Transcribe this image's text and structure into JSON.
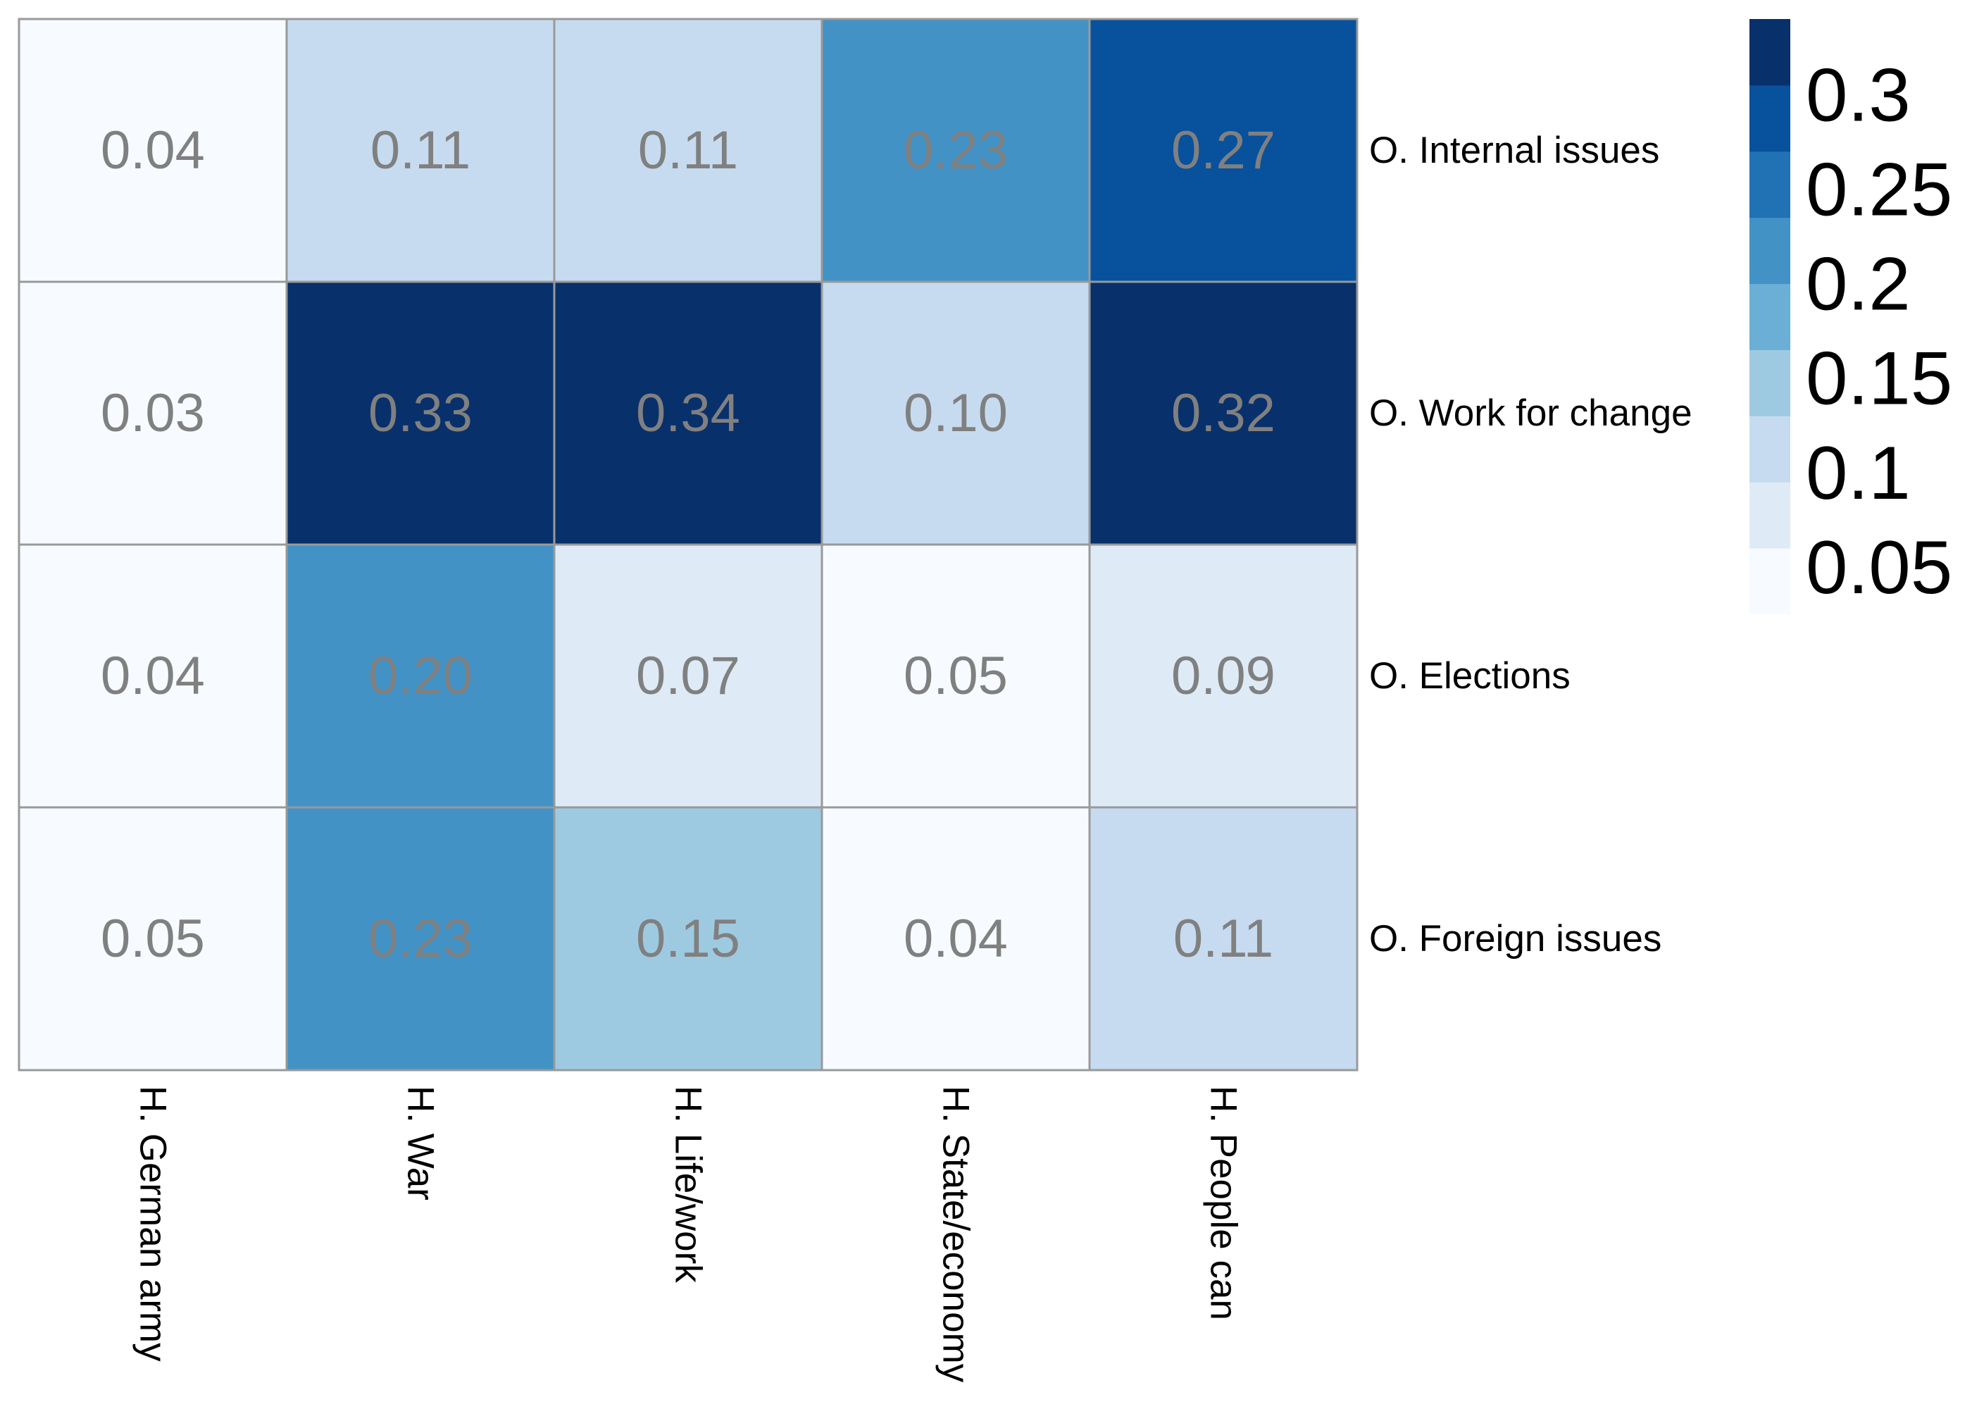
{
  "chart_data": {
    "type": "heatmap",
    "rows": [
      "O. Internal issues",
      "O. Work for change",
      "O. Elections",
      "O. Foreign issues"
    ],
    "columns": [
      "H. German army",
      "H. War",
      "H. Life/work",
      "H. State/economy",
      "H. People can"
    ],
    "values": [
      [
        "0.04",
        "0.11",
        "0.11",
        "0.23",
        "0.27"
      ],
      [
        "0.03",
        "0.33",
        "0.34",
        "0.10",
        "0.32"
      ],
      [
        "0.04",
        "0.20",
        "0.07",
        "0.05",
        "0.09"
      ],
      [
        "0.05",
        "0.23",
        "0.15",
        "0.04",
        "0.11"
      ]
    ],
    "legend": {
      "ticks": [
        "0.3",
        "0.25",
        "0.2",
        "0.15",
        "0.1",
        "0.05"
      ],
      "range": [
        0.025,
        0.34
      ],
      "colors": [
        "#f7fbff",
        "#deebf7",
        "#c6dbef",
        "#9ecae1",
        "#6baed6",
        "#4292c6",
        "#2171b5",
        "#08519c",
        "#08306b"
      ]
    },
    "cell_text_color": "#808080",
    "grid_color": "#999999"
  }
}
